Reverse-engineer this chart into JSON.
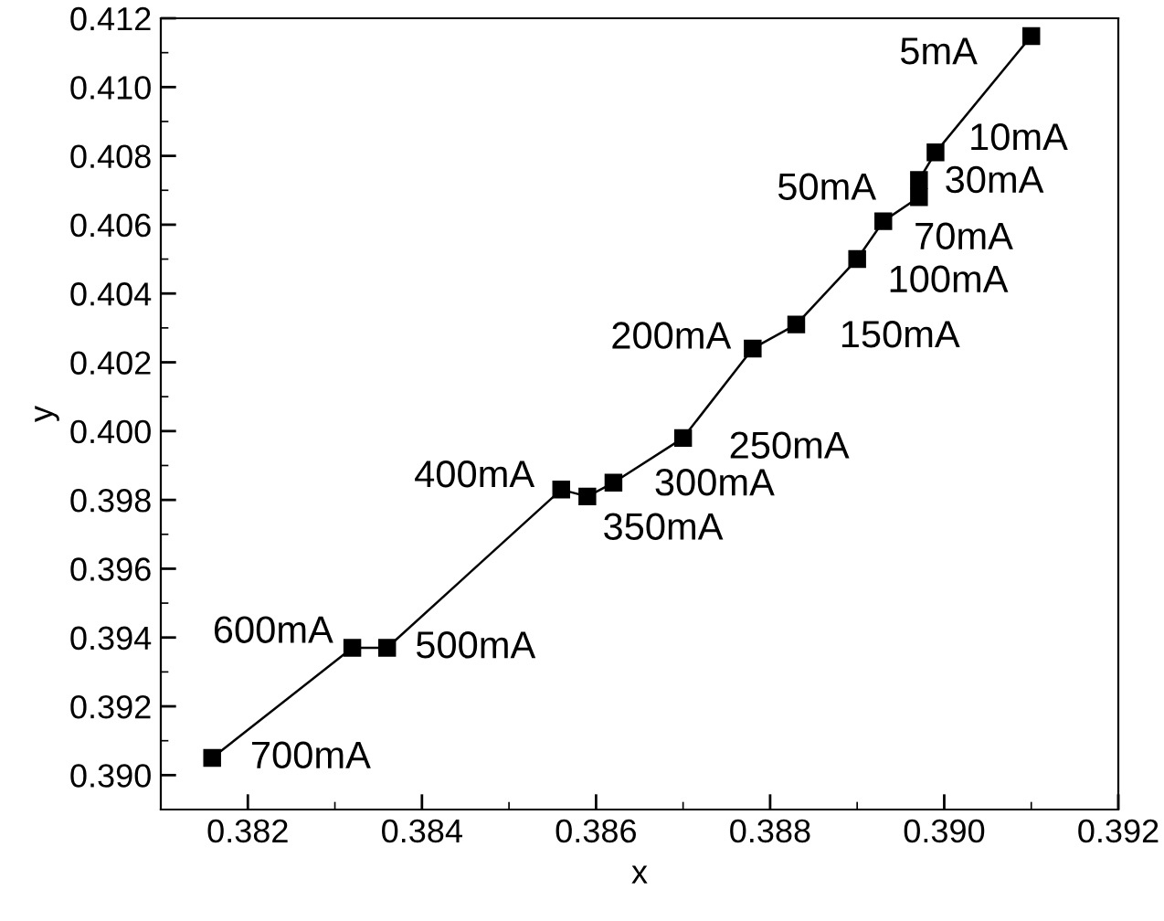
{
  "chart_data": {
    "type": "line",
    "xlabel": "x",
    "ylabel": "y",
    "series": [
      {
        "color": "#000000",
        "x": [
          0.391,
          0.3899,
          0.38971,
          0.38971,
          0.3893,
          0.389,
          0.3883,
          0.3878,
          0.387,
          0.3862,
          0.3859,
          0.3856,
          0.3836,
          0.3832,
          0.38159
        ],
        "values": [
          0.41148,
          0.4081,
          0.4073,
          0.4068,
          0.4061,
          0.405,
          0.4031,
          0.4024,
          0.3998,
          0.3985,
          0.3981,
          0.3983,
          0.3937,
          0.3937,
          0.3905
        ]
      }
    ],
    "marker": "square",
    "line_style": "solid",
    "grid": false,
    "legend": false,
    "xlim": [
      0.381,
      0.392
    ],
    "ylim": [
      0.389,
      0.412
    ],
    "xticks": [
      {
        "value": 0.382,
        "label": "0.382"
      },
      {
        "value": 0.384,
        "label": "0.384"
      },
      {
        "value": 0.386,
        "label": "0.386"
      },
      {
        "value": 0.388,
        "label": "0.388"
      },
      {
        "value": 0.39,
        "label": "0.390"
      },
      {
        "value": 0.392,
        "label": "0.392"
      }
    ],
    "yticks": [
      {
        "value": 0.39,
        "label": "0.390"
      },
      {
        "value": 0.392,
        "label": "0.392"
      },
      {
        "value": 0.394,
        "label": "0.394"
      },
      {
        "value": 0.396,
        "label": "0.396"
      },
      {
        "value": 0.398,
        "label": "0.398"
      },
      {
        "value": 0.4,
        "label": "0.400"
      },
      {
        "value": 0.402,
        "label": "0.402"
      },
      {
        "value": 0.404,
        "label": "0.404"
      },
      {
        "value": 0.406,
        "label": "0.406"
      },
      {
        "value": 0.408,
        "label": "0.408"
      },
      {
        "value": 0.41,
        "label": "0.410"
      },
      {
        "value": 0.412,
        "label": "0.412"
      }
    ],
    "annotations": [
      {
        "text": "5mA",
        "x": 0.391,
        "y": 0.41148
      },
      {
        "text": "10mA",
        "x": 0.3899,
        "y": 0.4081
      },
      {
        "text": "30mA",
        "x": 0.38971,
        "y": 0.4073
      },
      {
        "text": "50mA",
        "x": 0.38971,
        "y": 0.4068
      },
      {
        "text": "70mA",
        "x": 0.3893,
        "y": 0.4061
      },
      {
        "text": "100mA",
        "x": 0.389,
        "y": 0.405
      },
      {
        "text": "150mA",
        "x": 0.3883,
        "y": 0.4031
      },
      {
        "text": "200mA",
        "x": 0.3878,
        "y": 0.4024
      },
      {
        "text": "250mA",
        "x": 0.387,
        "y": 0.3998
      },
      {
        "text": "300mA",
        "x": 0.3862,
        "y": 0.3985
      },
      {
        "text": "350mA",
        "x": 0.3859,
        "y": 0.3981
      },
      {
        "text": "400mA",
        "x": 0.3856,
        "y": 0.3983
      },
      {
        "text": "500mA",
        "x": 0.3836,
        "y": 0.3937
      },
      {
        "text": "600mA",
        "x": 0.3832,
        "y": 0.3937
      },
      {
        "text": "700mA",
        "x": 0.38159,
        "y": 0.3905
      }
    ]
  }
}
